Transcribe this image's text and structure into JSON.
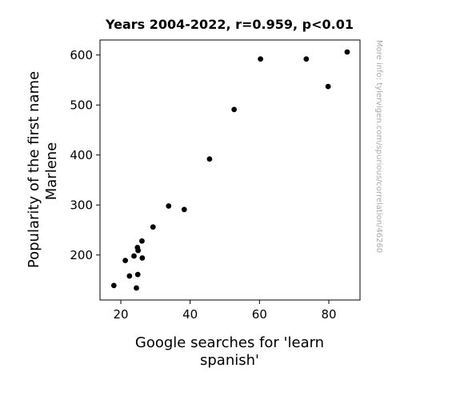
{
  "chart_data": {
    "type": "scatter",
    "title": "Years 2004-2022, r=0.959, p<0.01",
    "xlabel_lines": [
      "Google searches for 'learn",
      "spanish'"
    ],
    "ylabel_lines": [
      "Popularity of the first name",
      "Marlene"
    ],
    "watermark": "More info: tylervigen.com/spurious/correlation/46260",
    "xlim": [
      14,
      89
    ],
    "ylim": [
      110,
      630
    ],
    "xticks": [
      20,
      40,
      60,
      80
    ],
    "yticks": [
      200,
      300,
      400,
      500,
      600
    ],
    "grid": false,
    "marker_color": "#000000",
    "points": [
      {
        "x": 18.0,
        "y": 139
      },
      {
        "x": 21.3,
        "y": 189
      },
      {
        "x": 22.5,
        "y": 158
      },
      {
        "x": 23.8,
        "y": 198
      },
      {
        "x": 24.5,
        "y": 134
      },
      {
        "x": 24.8,
        "y": 215
      },
      {
        "x": 25.0,
        "y": 209
      },
      {
        "x": 24.9,
        "y": 161
      },
      {
        "x": 26.1,
        "y": 228
      },
      {
        "x": 26.2,
        "y": 194
      },
      {
        "x": 29.3,
        "y": 256
      },
      {
        "x": 33.8,
        "y": 298
      },
      {
        "x": 38.3,
        "y": 291
      },
      {
        "x": 45.6,
        "y": 392
      },
      {
        "x": 52.7,
        "y": 491
      },
      {
        "x": 60.3,
        "y": 592
      },
      {
        "x": 73.5,
        "y": 592
      },
      {
        "x": 79.8,
        "y": 537
      },
      {
        "x": 85.3,
        "y": 606
      }
    ]
  }
}
